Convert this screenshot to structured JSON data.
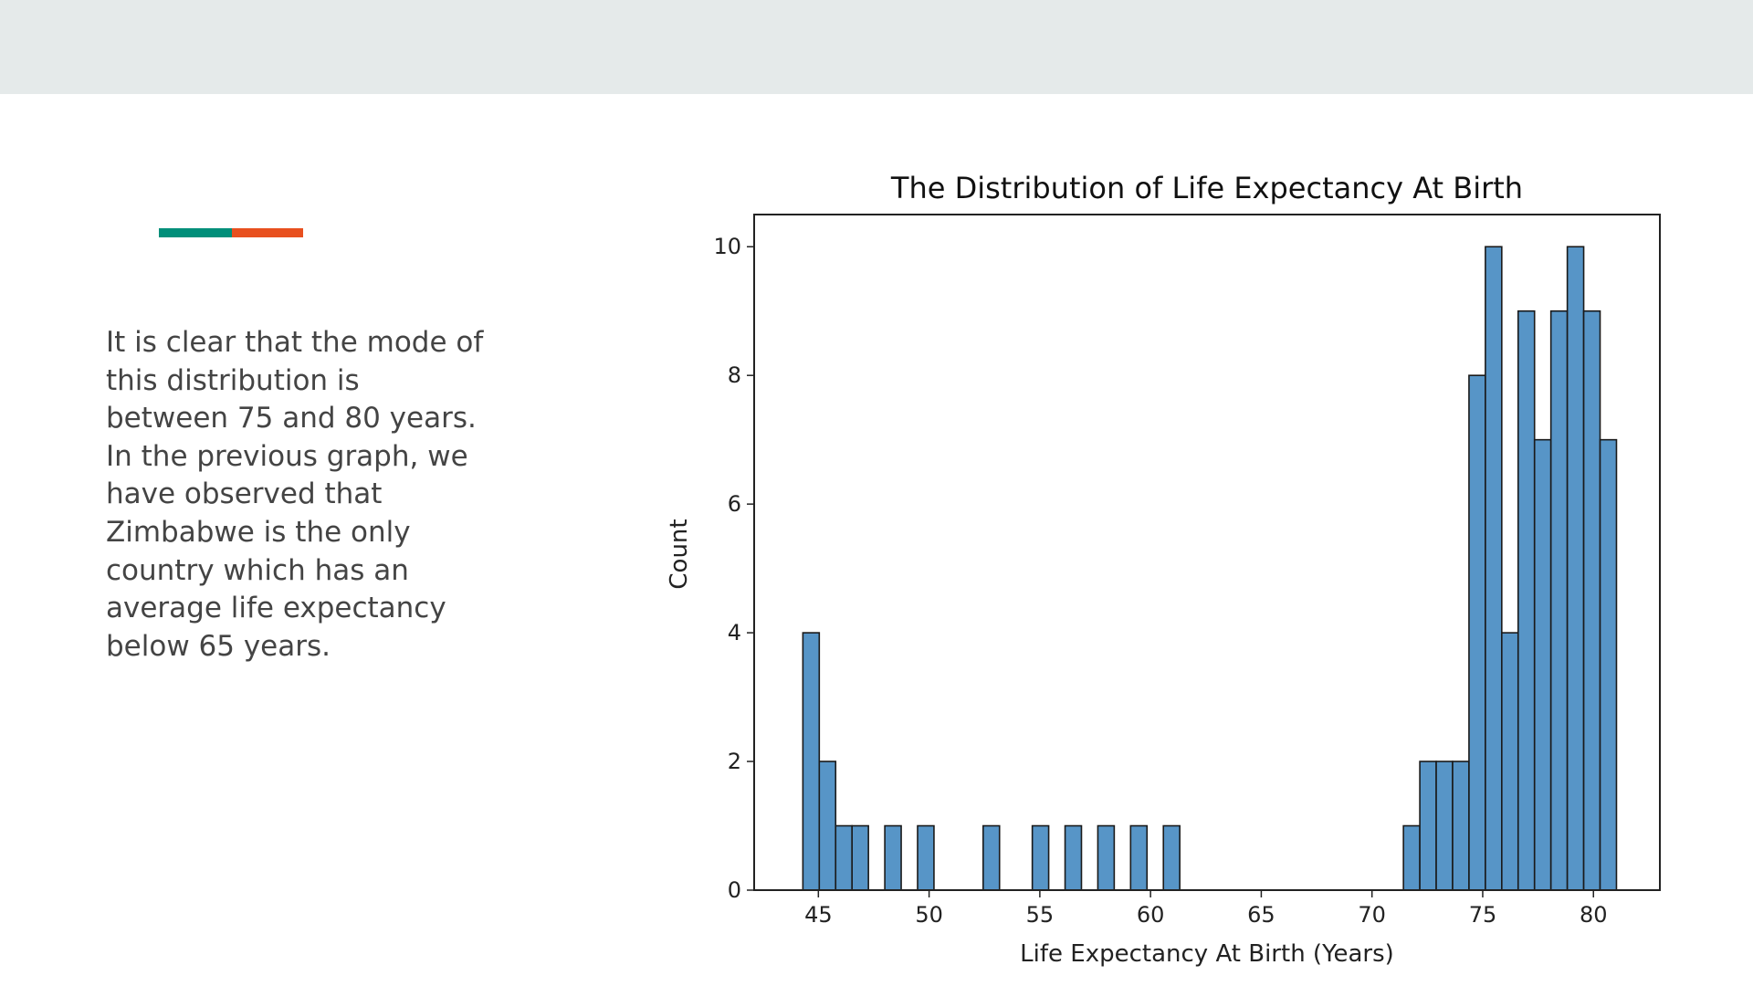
{
  "slide": {
    "text": "It is clear that the mode of this distribution is between 75 and 80 years. In the previous graph, we have observed that Zimbabwe is the only country which has an average life expectancy below 65 years.",
    "accent_colors": [
      "#008f7a",
      "#e8501f"
    ],
    "header_band_color": "#e5eaea"
  },
  "chart_data": {
    "type": "bar",
    "title": "The Distribution of Life Expectancy At Birth",
    "xlabel": "Life Expectancy At Birth (Years)",
    "ylabel": "Count",
    "xlim": [
      42.1,
      83.0
    ],
    "ylim": [
      0,
      10.5
    ],
    "x_ticks": [
      "45",
      "50",
      "55",
      "60",
      "65",
      "70",
      "75",
      "80"
    ],
    "y_ticks": [
      "0",
      "2",
      "4",
      "6",
      "8",
      "10"
    ],
    "bar_color": "#4e8fc4",
    "bin_width": 0.74,
    "bins": [
      {
        "x0": 44.3,
        "count": 4
      },
      {
        "x0": 45.04,
        "count": 2
      },
      {
        "x0": 45.78,
        "count": 1
      },
      {
        "x0": 46.52,
        "count": 1
      },
      {
        "x0": 48.0,
        "count": 1
      },
      {
        "x0": 49.48,
        "count": 1
      },
      {
        "x0": 52.44,
        "count": 1
      },
      {
        "x0": 54.66,
        "count": 1
      },
      {
        "x0": 56.14,
        "count": 1
      },
      {
        "x0": 57.62,
        "count": 1
      },
      {
        "x0": 59.1,
        "count": 1
      },
      {
        "x0": 60.58,
        "count": 1
      },
      {
        "x0": 71.42,
        "count": 1
      },
      {
        "x0": 72.16,
        "count": 2
      },
      {
        "x0": 72.9,
        "count": 2
      },
      {
        "x0": 73.64,
        "count": 2
      },
      {
        "x0": 74.38,
        "count": 8
      },
      {
        "x0": 75.12,
        "count": 10
      },
      {
        "x0": 75.86,
        "count": 4
      },
      {
        "x0": 76.6,
        "count": 9
      },
      {
        "x0": 77.34,
        "count": 7
      },
      {
        "x0": 78.08,
        "count": 9
      },
      {
        "x0": 78.82,
        "count": 10
      },
      {
        "x0": 79.56,
        "count": 9
      },
      {
        "x0": 80.3,
        "count": 7
      }
    ]
  }
}
